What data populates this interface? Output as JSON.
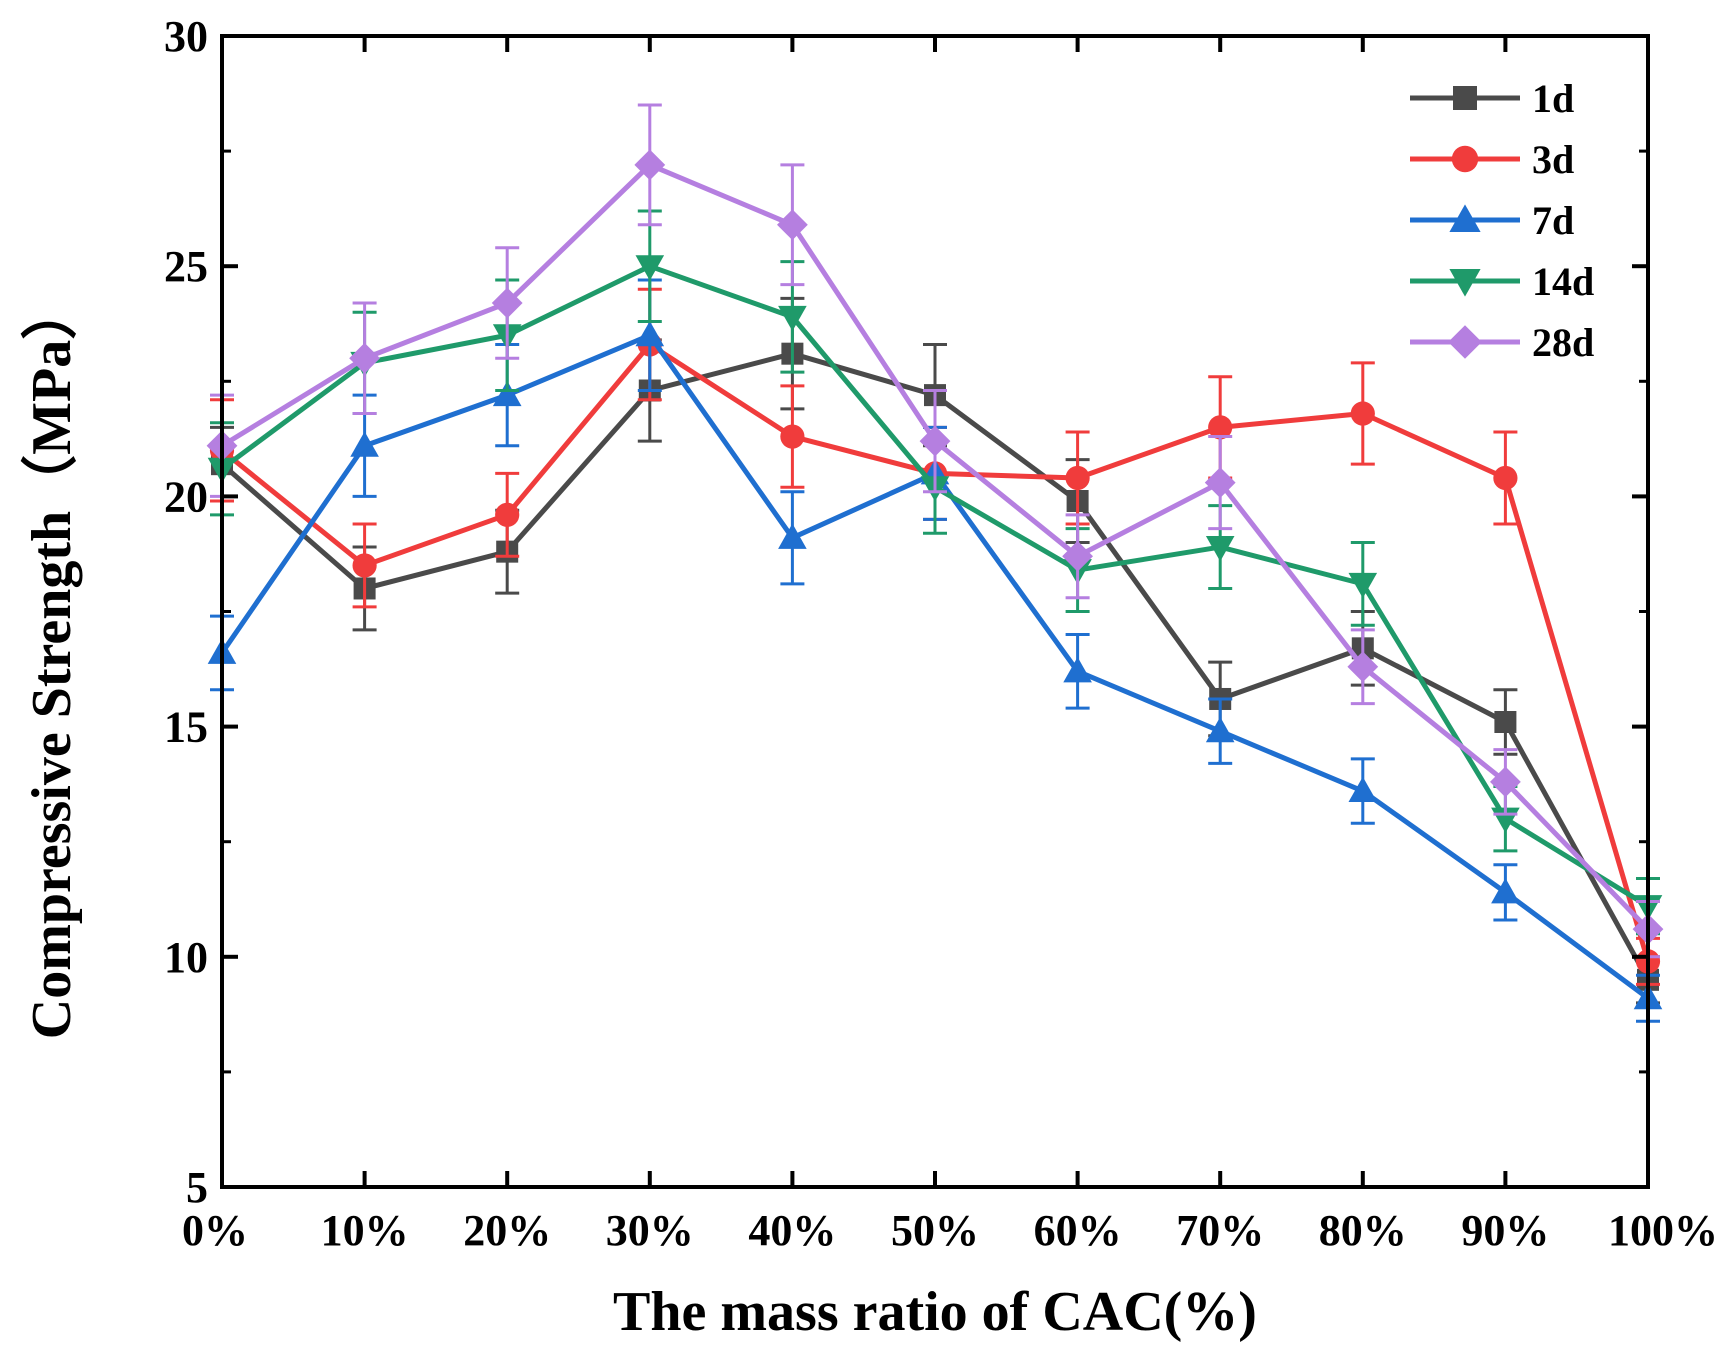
{
  "chart_data": {
    "type": "line",
    "title": "",
    "xlabel": "The mass ratio of CAC(%)",
    "ylabel": "Compressive Strength（MPa）",
    "ylim": [
      5,
      30
    ],
    "yticks": [
      5,
      10,
      15,
      20,
      25,
      30
    ],
    "categories": [
      "0%",
      "10%",
      "20%",
      "30%",
      "40%",
      "50%",
      "60%",
      "70%",
      "80%",
      "90%",
      "100%"
    ],
    "legend_position": "top-right",
    "series": [
      {
        "name": "1d",
        "color": "#4a4a4a",
        "marker": "square",
        "values": [
          20.7,
          18.0,
          18.8,
          22.3,
          23.1,
          22.2,
          19.9,
          15.6,
          16.7,
          15.1,
          9.5
        ],
        "errors": [
          0.8,
          0.9,
          0.9,
          1.1,
          1.2,
          1.1,
          0.9,
          0.8,
          0.8,
          0.7,
          0.5
        ]
      },
      {
        "name": "3d",
        "color": "#f03c3c",
        "marker": "circle",
        "values": [
          21.0,
          18.5,
          19.6,
          23.3,
          21.3,
          20.5,
          20.4,
          21.5,
          21.8,
          20.4,
          9.9
        ],
        "errors": [
          1.1,
          0.9,
          0.9,
          1.2,
          1.1,
          1.0,
          1.0,
          1.1,
          1.1,
          1.0,
          0.5
        ]
      },
      {
        "name": "7d",
        "color": "#1f6fd0",
        "marker": "triangle-up",
        "values": [
          16.6,
          21.1,
          22.2,
          23.5,
          19.1,
          20.5,
          16.2,
          14.9,
          13.6,
          11.4,
          9.1
        ],
        "errors": [
          0.8,
          1.1,
          1.1,
          1.2,
          1.0,
          1.0,
          0.8,
          0.7,
          0.7,
          0.6,
          0.5
        ]
      },
      {
        "name": "14d",
        "color": "#1f9a6a",
        "marker": "triangle-down",
        "values": [
          20.6,
          22.9,
          23.5,
          25.0,
          23.9,
          20.2,
          18.4,
          18.9,
          18.1,
          13.0,
          11.1
        ],
        "errors": [
          1.0,
          1.1,
          1.2,
          1.2,
          1.2,
          1.0,
          0.9,
          0.9,
          0.9,
          0.7,
          0.6
        ]
      },
      {
        "name": "28d",
        "color": "#b57fe0",
        "marker": "diamond",
        "values": [
          21.1,
          23.0,
          24.2,
          27.2,
          25.9,
          21.2,
          18.7,
          20.3,
          16.3,
          13.8,
          10.6
        ],
        "errors": [
          1.1,
          1.2,
          1.2,
          1.3,
          1.3,
          1.1,
          0.9,
          1.0,
          0.8,
          0.7,
          0.6
        ]
      }
    ]
  }
}
